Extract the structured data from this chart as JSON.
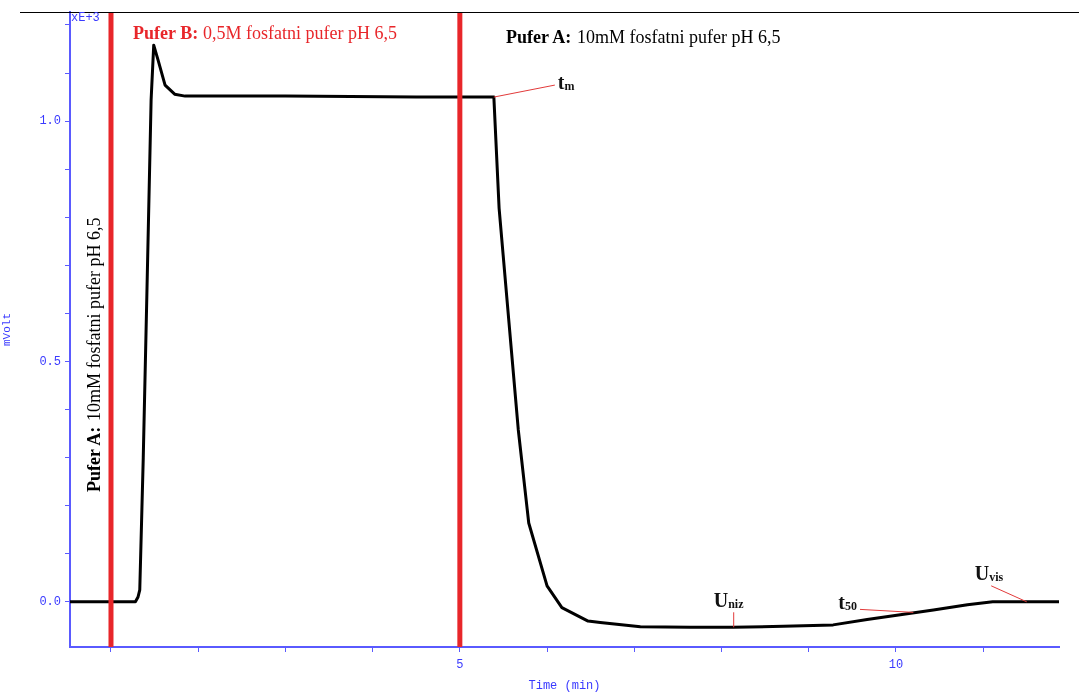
{
  "chart_data": {
    "type": "line",
    "xlabel": "Time (min)",
    "ylabel": "mVolt",
    "xlim": [
      0.53,
      11.87
    ],
    "ylim": [
      -0.094,
      1.227
    ],
    "xticks": [
      {
        "value": 1,
        "label": null
      },
      {
        "value": 2,
        "label": null
      },
      {
        "value": 3,
        "label": null
      },
      {
        "value": 4,
        "label": null
      },
      5,
      {
        "value": 6,
        "label": null
      },
      {
        "value": 7,
        "label": null
      },
      {
        "value": 8,
        "label": null
      },
      {
        "value": 9,
        "label": null
      },
      10,
      {
        "value": 11,
        "label": null
      }
    ],
    "yticks": [
      {
        "value": 0,
        "label": "0.0"
      },
      {
        "value": 0.1,
        "label": null
      },
      {
        "value": 0.2,
        "label": null
      },
      {
        "value": 0.3,
        "label": null
      },
      {
        "value": 0.4,
        "label": null
      },
      {
        "value": 0.5,
        "label": "0.5"
      },
      {
        "value": 0.6,
        "label": null
      },
      {
        "value": 0.7,
        "label": null
      },
      {
        "value": 0.8,
        "label": null
      },
      {
        "value": 0.9,
        "label": null
      },
      {
        "value": 1.0,
        "label": "1.0"
      },
      {
        "value": 1.1,
        "label": null
      },
      {
        "value": 1.2,
        "label": null
      }
    ],
    "marker": "none",
    "line_style": "solid",
    "series": [
      {
        "color": "#000000",
        "x": [
          0.53,
          1.28,
          1.31,
          1.33,
          1.37,
          1.41,
          1.46,
          1.49,
          1.54,
          1.62,
          1.73,
          1.85,
          3.0,
          4.5,
          5.39,
          5.45,
          5.56,
          5.67,
          5.79,
          6.0,
          6.17,
          6.47,
          6.61,
          7.07,
          7.64,
          8.13,
          8.71,
          9.28,
          9.67,
          10.05,
          10.43,
          10.82,
          11.11,
          11.87
        ],
        "values": [
          0,
          0,
          0.01,
          0.025,
          0.3,
          0.628,
          1.044,
          1.158,
          1.127,
          1.075,
          1.056,
          1.052,
          1.052,
          1.05,
          1.05,
          0.819,
          0.588,
          0.358,
          0.164,
          0.033,
          -0.012,
          -0.04,
          -0.043,
          -0.052,
          -0.053,
          -0.053,
          -0.051,
          -0.048,
          -0.037,
          -0.027,
          -0.017,
          -0.006,
          0,
          0
        ]
      }
    ],
    "ref_lines": [
      {
        "axis": "x",
        "value": 1,
        "color": "#e8262a"
      },
      {
        "axis": "x",
        "value": 5,
        "color": "#e8262a"
      }
    ],
    "annotations": [
      "xE+3",
      "Pufer A: 10mM fosfatni pufer pH 6,5",
      "Pufer B: 0,5M fosfatni pufer pH 6,5",
      "Pufer A: 10mM fosfatni pufer pH 6,5",
      {
        "text": "t$_{m}$",
        "x": 5.39,
        "y": 1.05
      },
      {
        "text": "U$_{niz}$",
        "x": 8.14,
        "y": -0.053
      },
      {
        "text": "t$_{50}$",
        "x": 10.2,
        "y": -0.022
      },
      {
        "text": "U$_{vis}$",
        "x": 11.5,
        "y": 0
      }
    ]
  }
}
